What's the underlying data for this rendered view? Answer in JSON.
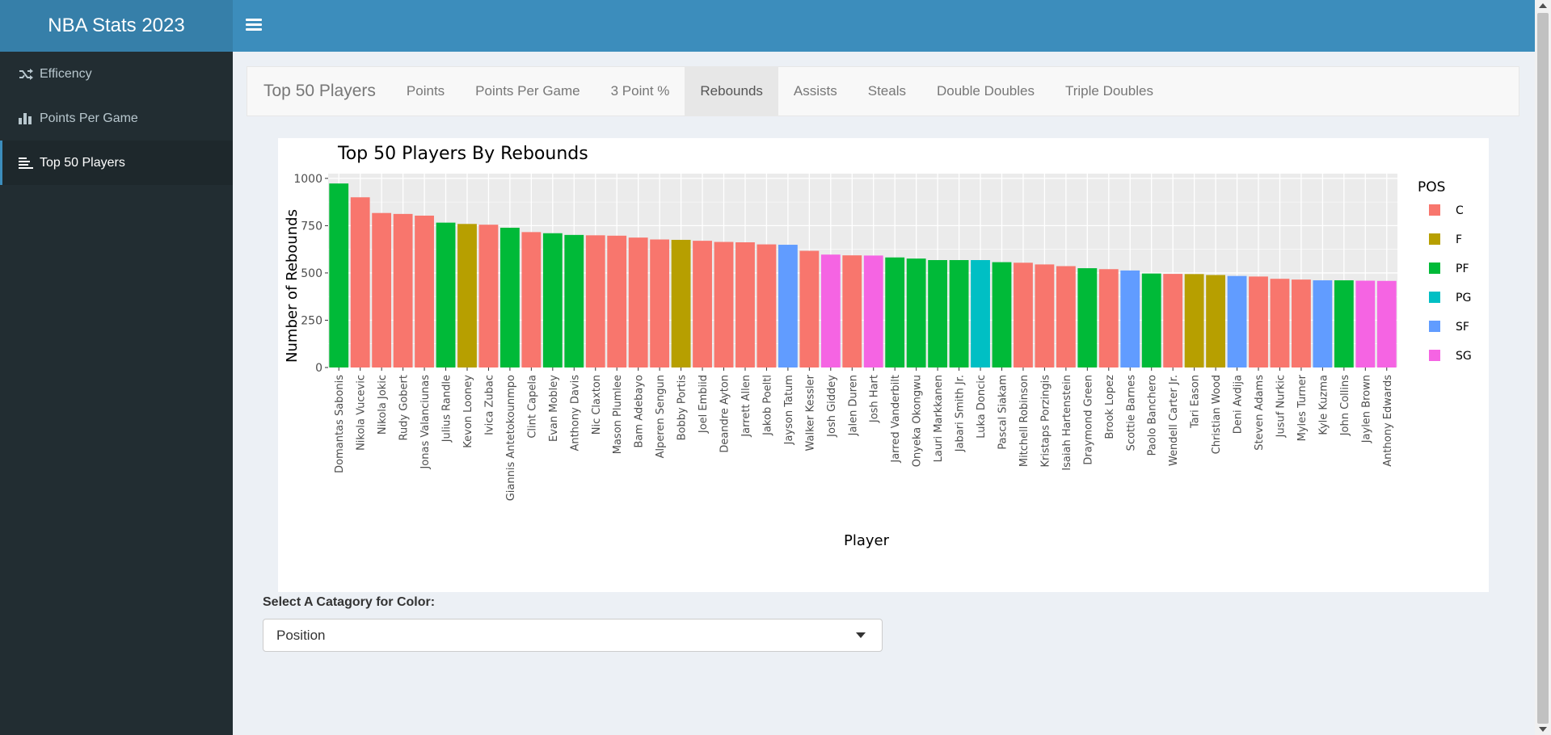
{
  "app": {
    "title": "NBA Stats 2023"
  },
  "sidebar": {
    "items": [
      {
        "label": "Efficency",
        "icon": "random-icon"
      },
      {
        "label": "Points Per Game",
        "icon": "bar-chart-icon"
      },
      {
        "label": "Top 50 Players",
        "icon": "align-left-icon"
      }
    ],
    "active": 2
  },
  "navbar": {
    "brand": "Top 50 Players",
    "tabs": [
      "Points",
      "Points Per Game",
      "3 Point %",
      "Rebounds",
      "Assists",
      "Steals",
      "Double Doubles",
      "Triple Doubles"
    ],
    "active": 3
  },
  "select": {
    "label": "Select A Catagory for Color:",
    "value": "Position"
  },
  "chart_data": {
    "type": "bar",
    "title": "Top 50 Players By Rebounds",
    "xlabel": "Player",
    "ylabel": "Number of Rebounds",
    "ylim": [
      0,
      1025
    ],
    "yticks": [
      0,
      250,
      500,
      750,
      1000
    ],
    "legend": {
      "title": "POS",
      "position": "right",
      "entries": [
        {
          "name": "C",
          "color": "#F8766D"
        },
        {
          "name": "F",
          "color": "#B79F00"
        },
        {
          "name": "PF",
          "color": "#00BA38"
        },
        {
          "name": "PG",
          "color": "#00BFC4"
        },
        {
          "name": "SF",
          "color": "#619CFF"
        },
        {
          "name": "SG",
          "color": "#F564E3"
        }
      ]
    },
    "categories": [
      "Domantas Sabonis",
      "Nikola Vucevic",
      "Nikola Jokic",
      "Rudy Gobert",
      "Jonas Valanciunas",
      "Julius Randle",
      "Kevon Looney",
      "Ivica Zubac",
      "Giannis Antetokounmpo",
      "Clint Capela",
      "Evan Mobley",
      "Anthony Davis",
      "Nic Claxton",
      "Mason Plumlee",
      "Bam Adebayo",
      "Alperen Sengun",
      "Bobby Portis",
      "Joel Embiid",
      "Deandre Ayton",
      "Jarrett Allen",
      "Jakob Poeltl",
      "Jayson Tatum",
      "Walker Kessler",
      "Josh Giddey",
      "Jalen Duren",
      "Josh Hart",
      "Jarred Vanderbilt",
      "Onyeka Okongwu",
      "Lauri Markkanen",
      "Jabari Smith Jr.",
      "Luka Doncic",
      "Pascal Siakam",
      "Mitchell Robinson",
      "Kristaps Porzingis",
      "Isaiah Hartenstein",
      "Draymond Green",
      "Brook Lopez",
      "Scottie Barnes",
      "Paolo Banchero",
      "Wendell Carter Jr.",
      "Tari Eason",
      "Christian Wood",
      "Deni Avdija",
      "Steven Adams",
      "Jusuf Nurkic",
      "Myles Turner",
      "Kyle Kuzma",
      "John Collins",
      "Jaylen Brown",
      "Anthony Edwards"
    ],
    "values": [
      973,
      900,
      817,
      812,
      803,
      766,
      759,
      755,
      739,
      716,
      710,
      701,
      699,
      697,
      687,
      677,
      675,
      670,
      664,
      662,
      651,
      649,
      617,
      597,
      593,
      592,
      582,
      576,
      568,
      568,
      568,
      557,
      554,
      545,
      536,
      525,
      520,
      513,
      497,
      495,
      494,
      489,
      484,
      481,
      469,
      465,
      461,
      461,
      459,
      458
    ],
    "positions": [
      "PF",
      "C",
      "C",
      "C",
      "C",
      "PF",
      "F",
      "C",
      "PF",
      "C",
      "PF",
      "PF",
      "C",
      "C",
      "C",
      "C",
      "F",
      "C",
      "C",
      "C",
      "C",
      "SF",
      "C",
      "SG",
      "C",
      "SG",
      "PF",
      "PF",
      "PF",
      "PF",
      "PG",
      "PF",
      "C",
      "C",
      "C",
      "PF",
      "C",
      "SF",
      "PF",
      "C",
      "F",
      "F",
      "SF",
      "C",
      "C",
      "C",
      "SF",
      "PF",
      "SG",
      "SG"
    ]
  }
}
